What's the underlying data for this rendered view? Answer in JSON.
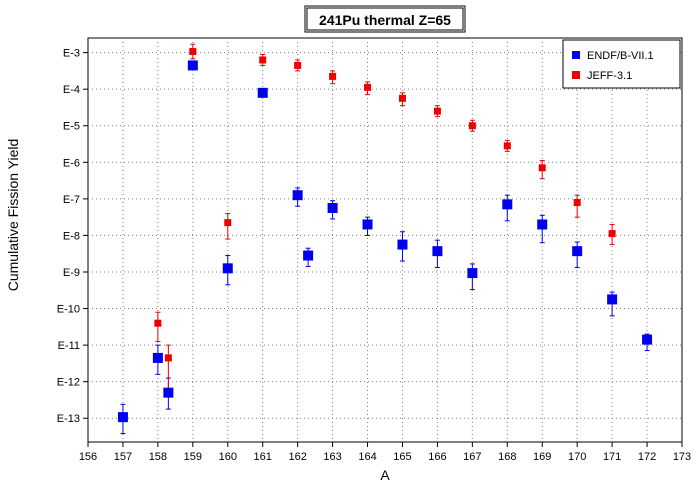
{
  "chart_data": {
    "type": "scatter",
    "title": "241Pu thermal Z=65",
    "xlabel": "A",
    "ylabel": "Cumulative Fission Yield",
    "xlim": [
      156,
      173
    ],
    "x_ticks": [
      156,
      157,
      158,
      159,
      160,
      161,
      162,
      163,
      164,
      165,
      166,
      167,
      168,
      169,
      170,
      171,
      172,
      173
    ],
    "ylim_log10": [
      -13.65,
      -2.6
    ],
    "y_scale": "log",
    "y_ticks": [
      {
        "exp": -3,
        "label": "E-3"
      },
      {
        "exp": -4,
        "label": "E-4"
      },
      {
        "exp": -5,
        "label": "E-5"
      },
      {
        "exp": -6,
        "label": "E-6"
      },
      {
        "exp": -7,
        "label": "E-7"
      },
      {
        "exp": -8,
        "label": "E-8"
      },
      {
        "exp": -9,
        "label": "E-9"
      },
      {
        "exp": -10,
        "label": "E-10"
      },
      {
        "exp": -11,
        "label": "E-11"
      },
      {
        "exp": -12,
        "label": "E-12"
      },
      {
        "exp": -13,
        "label": "E-13"
      }
    ],
    "grid": true,
    "legend_position": "top-right",
    "series": [
      {
        "name": "ENDF/B-VII.1",
        "color": "#0000ee",
        "marker": "square",
        "points": [
          {
            "x": 157.0,
            "log10y": -12.97,
            "err_lo": 0.45,
            "err_hi": 0.35
          },
          {
            "x": 158.0,
            "log10y": -11.35,
            "err_lo": 0.45,
            "err_hi": 0.35
          },
          {
            "x": 158.3,
            "log10y": -12.3,
            "err_lo": 0.45,
            "err_hi": 0.4
          },
          {
            "x": 159.0,
            "log10y": -3.35,
            "err_lo": 0.0,
            "err_hi": 0.0
          },
          {
            "x": 160.0,
            "log10y": -8.9,
            "err_lo": 0.45,
            "err_hi": 0.35
          },
          {
            "x": 161.0,
            "log10y": -4.1,
            "err_lo": 0.0,
            "err_hi": 0.0
          },
          {
            "x": 162.0,
            "log10y": -6.9,
            "err_lo": 0.3,
            "err_hi": 0.2
          },
          {
            "x": 162.3,
            "log10y": -8.55,
            "err_lo": 0.3,
            "err_hi": 0.2
          },
          {
            "x": 163.0,
            "log10y": -7.25,
            "err_lo": 0.3,
            "err_hi": 0.2
          },
          {
            "x": 164.0,
            "log10y": -7.7,
            "err_lo": 0.3,
            "err_hi": 0.2
          },
          {
            "x": 165.0,
            "log10y": -8.25,
            "err_lo": 0.45,
            "err_hi": 0.35
          },
          {
            "x": 166.0,
            "log10y": -8.43,
            "err_lo": 0.45,
            "err_hi": 0.3
          },
          {
            "x": 167.0,
            "log10y": -9.03,
            "err_lo": 0.45,
            "err_hi": 0.25
          },
          {
            "x": 168.0,
            "log10y": -7.15,
            "err_lo": 0.45,
            "err_hi": 0.25
          },
          {
            "x": 169.0,
            "log10y": -7.7,
            "err_lo": 0.5,
            "err_hi": 0.25
          },
          {
            "x": 170.0,
            "log10y": -8.43,
            "err_lo": 0.45,
            "err_hi": 0.25
          },
          {
            "x": 171.0,
            "log10y": -9.75,
            "err_lo": 0.45,
            "err_hi": 0.2
          },
          {
            "x": 172.0,
            "log10y": -10.85,
            "err_lo": 0.3,
            "err_hi": 0.15
          }
        ]
      },
      {
        "name": "JEFF-3.1",
        "color": "#ee0000",
        "marker": "square",
        "points": [
          {
            "x": 158.0,
            "log10y": -10.4,
            "err_lo": 0.5,
            "err_hi": 0.3
          },
          {
            "x": 158.3,
            "log10y": -11.35,
            "err_lo": 0.95,
            "err_hi": 0.35
          },
          {
            "x": 159.0,
            "log10y": -2.97,
            "err_lo": 0.2,
            "err_hi": 0.2
          },
          {
            "x": 160.0,
            "log10y": -7.65,
            "err_lo": 0.45,
            "err_hi": 0.25
          },
          {
            "x": 161.0,
            "log10y": -3.2,
            "err_lo": 0.15,
            "err_hi": 0.15
          },
          {
            "x": 162.0,
            "log10y": -3.35,
            "err_lo": 0.15,
            "err_hi": 0.15
          },
          {
            "x": 163.0,
            "log10y": -3.65,
            "err_lo": 0.2,
            "err_hi": 0.15
          },
          {
            "x": 164.0,
            "log10y": -3.95,
            "err_lo": 0.2,
            "err_hi": 0.15
          },
          {
            "x": 165.0,
            "log10y": -4.25,
            "err_lo": 0.2,
            "err_hi": 0.15
          },
          {
            "x": 166.0,
            "log10y": -4.6,
            "err_lo": 0.15,
            "err_hi": 0.15
          },
          {
            "x": 167.0,
            "log10y": -5.0,
            "err_lo": 0.15,
            "err_hi": 0.15
          },
          {
            "x": 168.0,
            "log10y": -5.55,
            "err_lo": 0.15,
            "err_hi": 0.15
          },
          {
            "x": 169.0,
            "log10y": -6.15,
            "err_lo": 0.3,
            "err_hi": 0.2
          },
          {
            "x": 170.0,
            "log10y": -7.1,
            "err_lo": 0.4,
            "err_hi": 0.2
          },
          {
            "x": 171.0,
            "log10y": -7.95,
            "err_lo": 0.3,
            "err_hi": 0.25
          }
        ]
      }
    ]
  }
}
